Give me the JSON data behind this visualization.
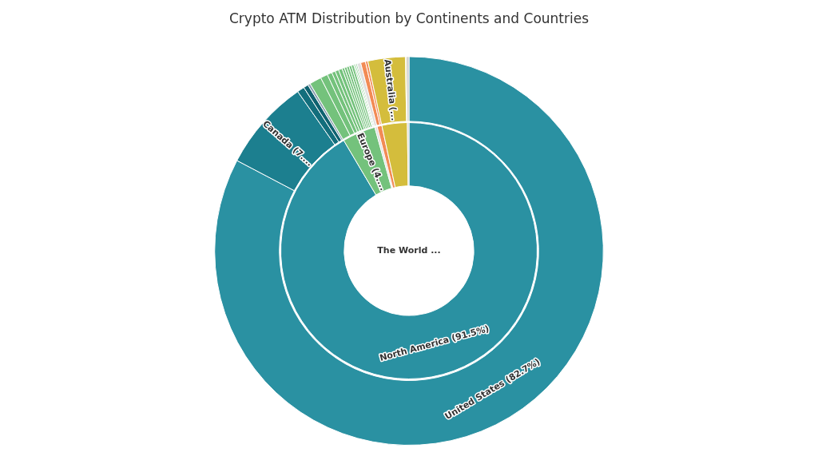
{
  "chart_data": [
    {
      "type": "donut",
      "title": "Crypto ATM Distribution by Continents and Countries",
      "legend": false,
      "categories": [
        "United States (82.7%)",
        "Canada (7....",
        null,
        null,
        null,
        null,
        null,
        null,
        null,
        null,
        null,
        null,
        null,
        null,
        null,
        null,
        null,
        null,
        null,
        null,
        null,
        null,
        "Australia (...",
        null,
        null
      ],
      "values": [
        82.7,
        7.6,
        0.6,
        0.4,
        0.2,
        1.0,
        0.6,
        0.4,
        0.3,
        0.3,
        0.3,
        0.2,
        0.2,
        0.2,
        0.2,
        0.2,
        0.1,
        0.1,
        0.1,
        0.3,
        0.4,
        0.2,
        3.1,
        0.1,
        0.2
      ],
      "colors": [
        "#2a91a2",
        "#1c7f8f",
        "#136e7c",
        "#0f6270",
        "#8aa0b0",
        "#74c27c",
        "#74c27c",
        "#74c27c",
        "#74c27c",
        "#74c27c",
        "#74c27c",
        "#74c27c",
        "#74c27c",
        "#74c27c",
        "#74c27c",
        "#74c27c",
        "#74c27c",
        "#74c27c",
        "#74c27c",
        "#e0e0e0",
        "#f28b55",
        "#f28b55",
        "#d4bd3c",
        "#d4bd3c",
        "#c8c8c8"
      ]
    },
    {
      "type": "donut",
      "legend": false,
      "categories": [
        "North America (91.5%)",
        "Europe (4....",
        null,
        null,
        null,
        null
      ],
      "values": [
        91.5,
        4.2,
        0.3,
        0.6,
        3.2,
        0.2
      ],
      "colors": [
        "#2a91a2",
        "#74c27c",
        "#e0e0e0",
        "#f28b55",
        "#d4bd3c",
        "#c8c8c8"
      ],
      "annotations": [
        "The World ..."
      ]
    }
  ]
}
